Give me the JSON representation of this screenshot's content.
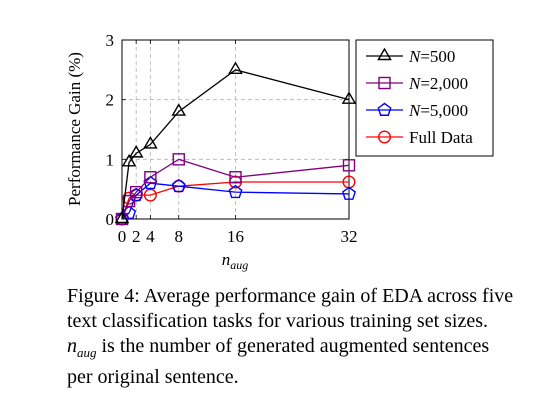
{
  "chart_data": {
    "type": "line",
    "x": [
      0,
      1,
      2,
      4,
      8,
      16,
      32
    ],
    "series": [
      {
        "name": "N=500",
        "name_var": "N",
        "name_val": "=500",
        "color": "#000000",
        "marker": "triangle",
        "values": [
          0,
          0.95,
          1.1,
          1.25,
          1.8,
          2.5,
          2.0
        ]
      },
      {
        "name": "N=2,000",
        "name_var": "N",
        "name_val": "=2,000",
        "color": "#800080",
        "marker": "square",
        "values": [
          0,
          0.3,
          0.45,
          0.7,
          1.0,
          0.7,
          0.9
        ]
      },
      {
        "name": "N=5,000",
        "name_var": "N",
        "name_val": "=5,000",
        "color": "#0000ff",
        "marker": "pentagon",
        "values": [
          0,
          0.1,
          0.4,
          0.6,
          0.55,
          0.45,
          0.42
        ]
      },
      {
        "name": "Full Data",
        "name_var": "",
        "name_val": "Full Data",
        "color": "#ff0000",
        "marker": "circle",
        "values": [
          0,
          0.35,
          0.4,
          0.4,
          0.55,
          0.62,
          0.62
        ]
      }
    ],
    "xticks": [
      "0",
      "2",
      "4",
      "8",
      "16",
      "32"
    ],
    "xtick_values": [
      0,
      2,
      4,
      8,
      16,
      32
    ],
    "yticks": [
      "0",
      "1",
      "2",
      "3"
    ],
    "ytick_values": [
      0,
      1,
      2,
      3
    ],
    "xlabel_base": "n",
    "xlabel_sub": "aug",
    "ylabel": "Performance Gain (%)",
    "xlim": [
      0,
      32
    ],
    "ylim": [
      0,
      3
    ],
    "grid": true,
    "legend_position": "right, outside"
  },
  "caption": {
    "label": "Figure 4:",
    "line1_rest": "Average performance gain of EDA across five",
    "line2": "text classification tasks for various training set sizes.",
    "math_base": "n",
    "math_sub": "aug",
    "line3_rest": "is the number of generated augmented sentences",
    "line4": "per original sentence."
  }
}
